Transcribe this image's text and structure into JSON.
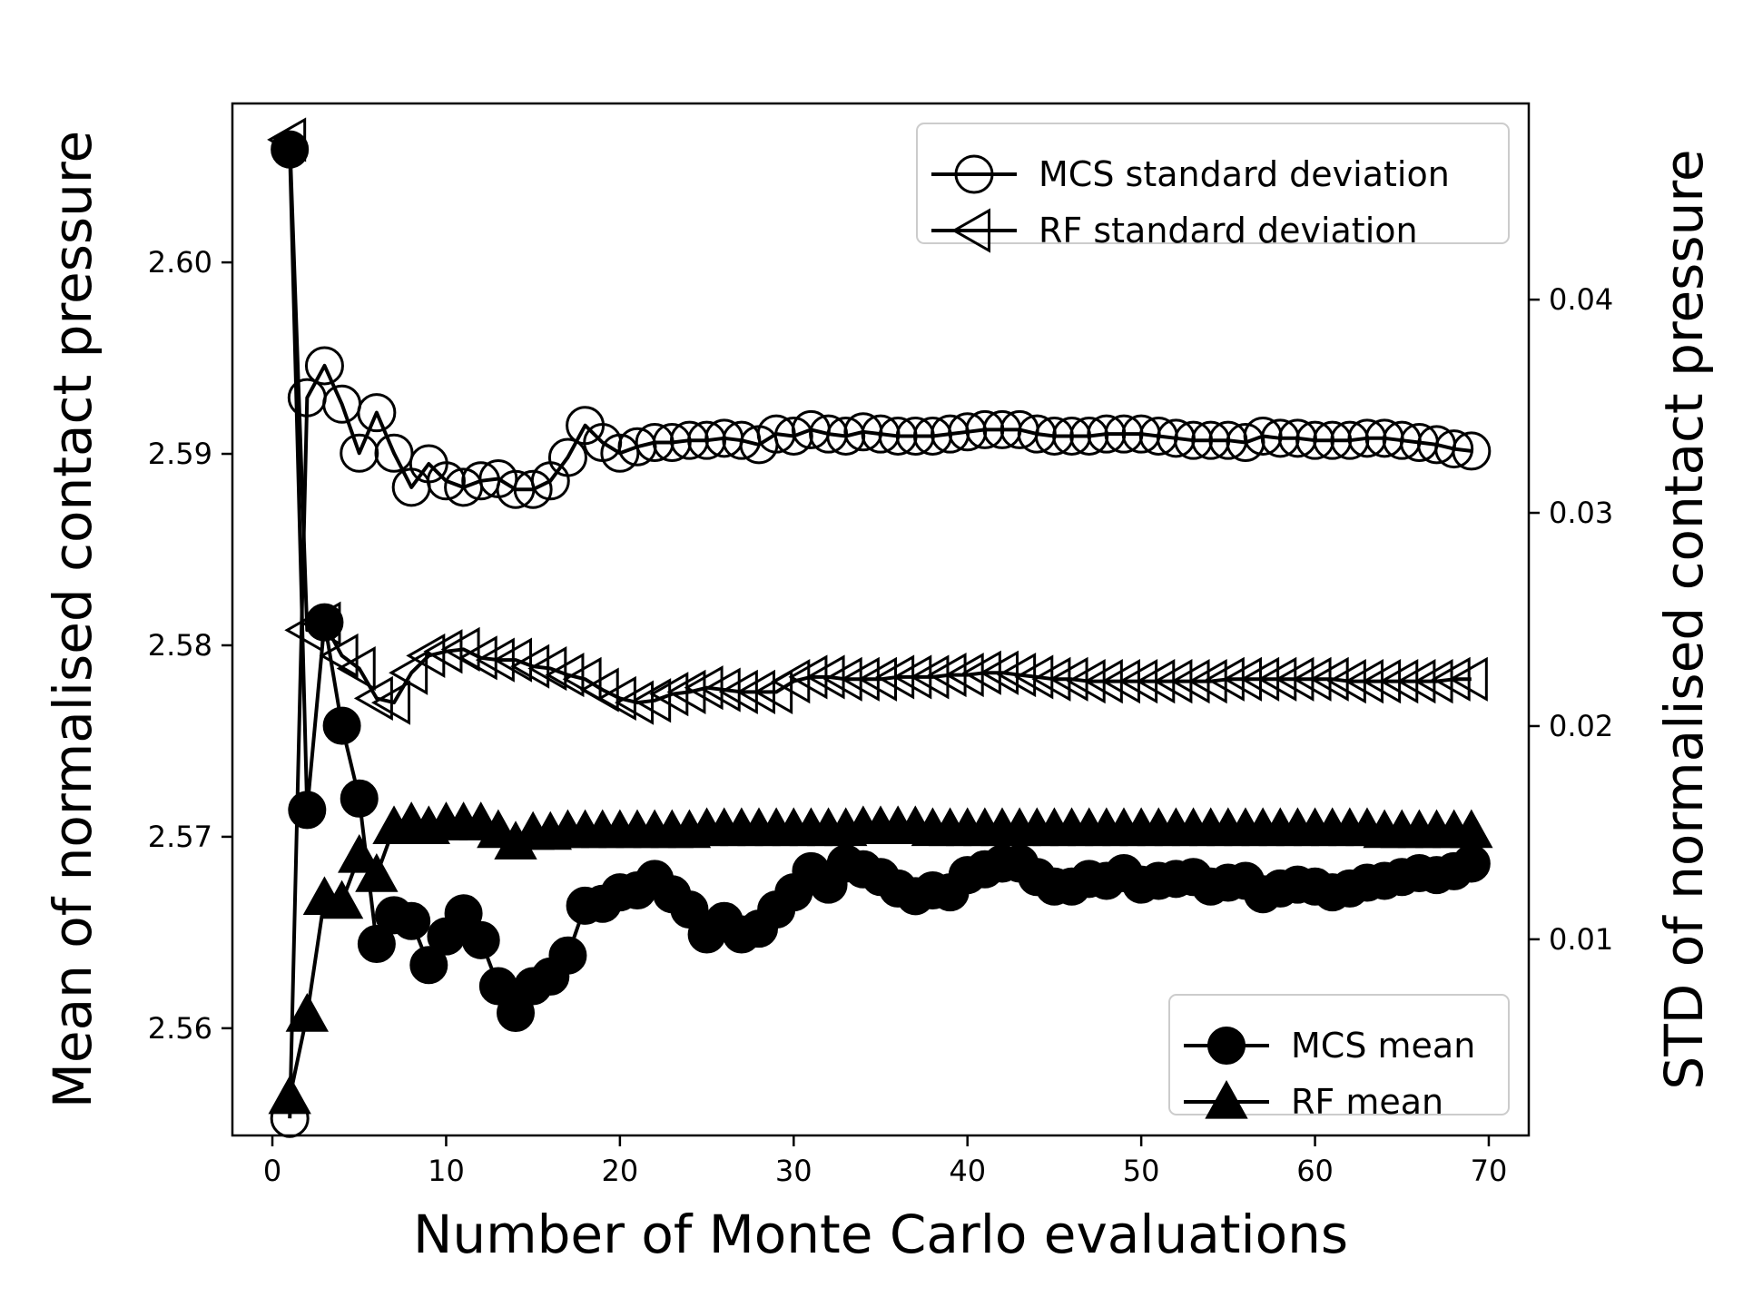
{
  "chart_data": {
    "type": "line",
    "xlabel": "Number of Monte Carlo evaluations",
    "ylabel_left": "Mean of normalised contact pressure",
    "ylabel_right": "STD of normalised contact pressure",
    "xlim": [
      -2.3,
      72.3
    ],
    "ylim_left": [
      2.5544,
      2.6083
    ],
    "ylim_right": [
      0.0008,
      0.0492
    ],
    "xticks": [
      0,
      10,
      20,
      30,
      40,
      50,
      60,
      70
    ],
    "yticks_left": [
      2.56,
      2.57,
      2.58,
      2.59,
      2.6
    ],
    "yticks_right": [
      0.01,
      0.02,
      0.03,
      0.04
    ],
    "xtick_labels": [
      "0",
      "10",
      "20",
      "30",
      "40",
      "50",
      "60",
      "70"
    ],
    "ytick_labels_left": [
      "2.56",
      "2.57",
      "2.58",
      "2.59",
      "2.60"
    ],
    "ytick_labels_right": [
      "0.01",
      "0.02",
      "0.03",
      "0.04"
    ],
    "grid": false,
    "legend_std_position": "top-right",
    "legend_mean_position": "bottom-right",
    "color": "#000000",
    "x": [
      1,
      2,
      3,
      4,
      5,
      6,
      7,
      8,
      9,
      10,
      11,
      12,
      13,
      14,
      15,
      16,
      17,
      18,
      19,
      20,
      21,
      22,
      23,
      24,
      25,
      26,
      27,
      28,
      29,
      30,
      31,
      32,
      33,
      34,
      35,
      36,
      37,
      38,
      39,
      40,
      41,
      42,
      43,
      44,
      45,
      46,
      47,
      48,
      49,
      50,
      51,
      52,
      53,
      54,
      55,
      56,
      57,
      58,
      59,
      60,
      61,
      62,
      63,
      64,
      65,
      66,
      67,
      68,
      69
    ],
    "series": [
      {
        "name": "MCS standard deviation",
        "axis": "right",
        "marker": "circle-open",
        "values": [
          0.0016,
          0.0354,
          0.0369,
          0.0351,
          0.0328,
          0.0347,
          0.0328,
          0.0312,
          0.0323,
          0.0315,
          0.0312,
          0.0315,
          0.0316,
          0.0311,
          0.0311,
          0.0315,
          0.0326,
          0.0341,
          0.0333,
          0.0328,
          0.0331,
          0.0333,
          0.0333,
          0.0334,
          0.0334,
          0.0335,
          0.0334,
          0.0332,
          0.0337,
          0.0336,
          0.0339,
          0.0337,
          0.0336,
          0.0338,
          0.0337,
          0.0336,
          0.0336,
          0.0336,
          0.0337,
          0.0338,
          0.0339,
          0.0339,
          0.0339,
          0.0337,
          0.0336,
          0.0336,
          0.0336,
          0.0337,
          0.0337,
          0.0337,
          0.0336,
          0.0335,
          0.0334,
          0.0334,
          0.0334,
          0.0333,
          0.0336,
          0.0335,
          0.0335,
          0.0334,
          0.0334,
          0.0334,
          0.0335,
          0.0335,
          0.0334,
          0.0333,
          0.0332,
          0.033,
          0.0329
        ]
      },
      {
        "name": "RF standard deviation",
        "axis": "right",
        "marker": "triangle-left-open",
        "values": [
          0.0475,
          0.0245,
          0.0248,
          0.0233,
          0.0227,
          0.0213,
          0.0211,
          0.0225,
          0.0233,
          0.0235,
          0.0236,
          0.0232,
          0.0231,
          0.0231,
          0.0228,
          0.0227,
          0.0224,
          0.0222,
          0.0217,
          0.0213,
          0.0211,
          0.0212,
          0.0215,
          0.0216,
          0.0218,
          0.0217,
          0.0216,
          0.0216,
          0.0216,
          0.0221,
          0.0223,
          0.0223,
          0.0222,
          0.0222,
          0.0222,
          0.0223,
          0.0223,
          0.0223,
          0.0224,
          0.0224,
          0.0225,
          0.0225,
          0.0224,
          0.0223,
          0.0222,
          0.0222,
          0.0221,
          0.0221,
          0.0221,
          0.0221,
          0.0221,
          0.0221,
          0.0221,
          0.0221,
          0.0222,
          0.0222,
          0.0222,
          0.0222,
          0.0222,
          0.0222,
          0.0222,
          0.0221,
          0.0221,
          0.0221,
          0.0221,
          0.0221,
          0.0221,
          0.0222,
          0.0222
        ]
      },
      {
        "name": "MCS mean",
        "axis": "left",
        "marker": "circle-filled",
        "values": [
          2.6059,
          2.5714,
          2.5812,
          2.5758,
          2.572,
          2.5644,
          2.5659,
          2.5656,
          2.5633,
          2.5648,
          2.566,
          2.5646,
          2.5622,
          2.5608,
          2.5622,
          2.5627,
          2.5638,
          2.5664,
          2.5665,
          2.5671,
          2.5672,
          2.5678,
          2.567,
          2.5662,
          2.5649,
          2.5656,
          2.5649,
          2.5652,
          2.5662,
          2.5671,
          2.5682,
          2.5675,
          2.5686,
          2.5683,
          2.5679,
          2.5673,
          2.5669,
          2.5672,
          2.5671,
          2.568,
          2.5683,
          2.5686,
          2.5686,
          2.5679,
          2.5674,
          2.5674,
          2.5678,
          2.5677,
          2.5681,
          2.5675,
          2.5677,
          2.5678,
          2.5679,
          2.5674,
          2.5676,
          2.5677,
          2.567,
          2.5673,
          2.5675,
          2.5674,
          2.5671,
          2.5673,
          2.5676,
          2.5677,
          2.5679,
          2.5681,
          2.568,
          2.5682,
          2.5686
        ]
      },
      {
        "name": "RF mean",
        "axis": "left",
        "marker": "triangle-up-filled",
        "values": [
          2.5564,
          2.5607,
          2.5668,
          2.5666,
          2.569,
          2.568,
          2.5705,
          2.5707,
          2.5705,
          2.5707,
          2.5707,
          2.5707,
          2.5703,
          2.5697,
          2.5702,
          2.5702,
          2.5703,
          2.5703,
          2.5703,
          2.5703,
          2.5703,
          2.5703,
          2.5703,
          2.5703,
          2.5704,
          2.5704,
          2.5704,
          2.5704,
          2.5704,
          2.5704,
          2.5704,
          2.5704,
          2.5704,
          2.5705,
          2.5705,
          2.5705,
          2.5705,
          2.5704,
          2.5704,
          2.5704,
          2.5704,
          2.5704,
          2.5704,
          2.5704,
          2.5704,
          2.5704,
          2.5704,
          2.5704,
          2.5704,
          2.5704,
          2.5704,
          2.5704,
          2.5704,
          2.5704,
          2.5704,
          2.5704,
          2.5704,
          2.5704,
          2.5704,
          2.5704,
          2.5704,
          2.5704,
          2.5704,
          2.5703,
          2.5703,
          2.5703,
          2.5703,
          2.5703,
          2.5703
        ]
      }
    ]
  }
}
